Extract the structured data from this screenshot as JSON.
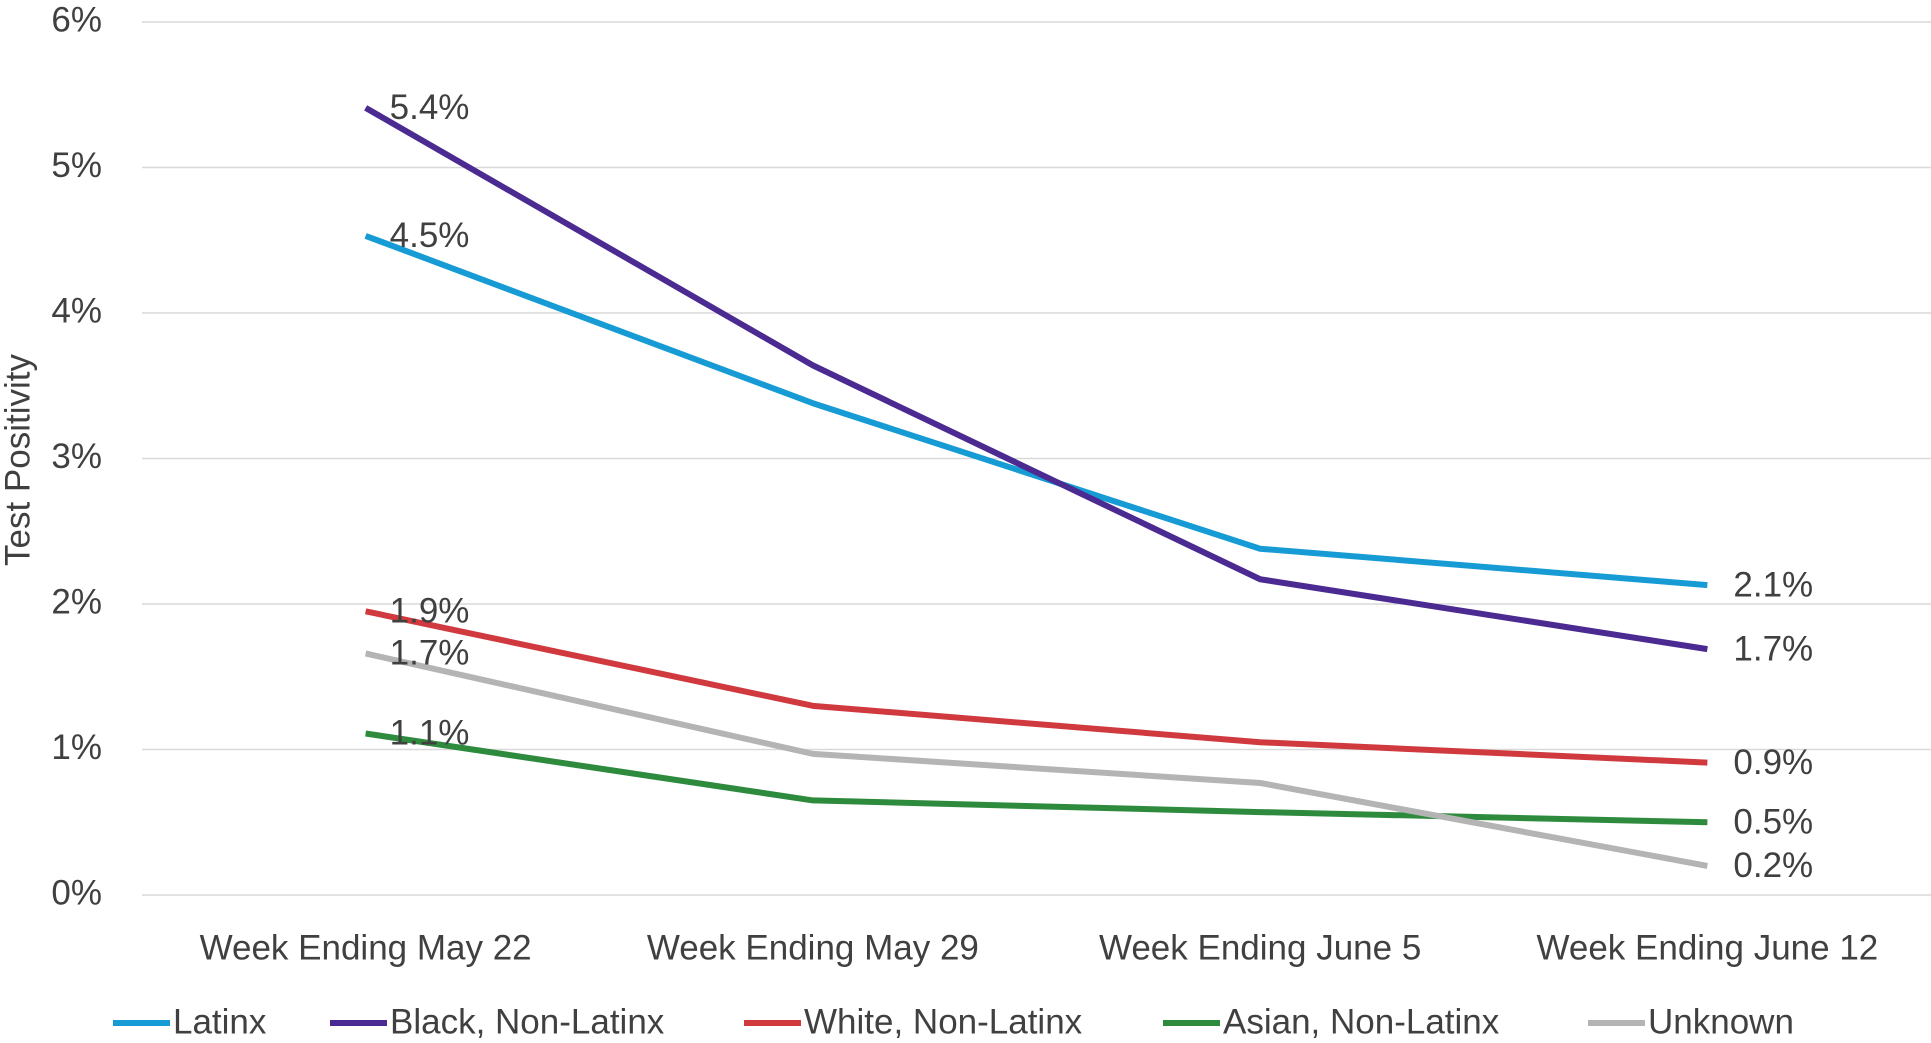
{
  "chart_data": {
    "type": "line",
    "y_axis_label": "Test Positivity",
    "categories": [
      "Week Ending May 22",
      "Week Ending May 29",
      "Week Ending June 5",
      "Week Ending June 12"
    ],
    "series": [
      {
        "name": "Latinx",
        "color": "#169bd5",
        "values": [
          4.53,
          3.38,
          2.38,
          2.13
        ],
        "value_labels": [
          "4.5%",
          null,
          null,
          "2.1%"
        ]
      },
      {
        "name": "Black, Non-Latinx",
        "color": "#4b2a91",
        "values": [
          5.41,
          3.64,
          2.17,
          1.69
        ],
        "value_labels": [
          "5.4%",
          null,
          null,
          "1.7%"
        ]
      },
      {
        "name": "White, Non-Latinx",
        "color": "#d03a3f",
        "values": [
          1.95,
          1.3,
          1.05,
          0.91
        ],
        "value_labels": [
          "1.9%",
          null,
          null,
          "0.9%"
        ]
      },
      {
        "name": "Asian, Non-Latinx",
        "color": "#2e8b3e",
        "values": [
          1.11,
          0.65,
          0.57,
          0.5
        ],
        "value_labels": [
          "1.1%",
          null,
          null,
          "0.5%"
        ]
      },
      {
        "name": "Unknown",
        "color": "#b4b4b4",
        "values": [
          1.66,
          0.97,
          0.77,
          0.2
        ],
        "value_labels": [
          "1.7%",
          null,
          null,
          "0.2%"
        ]
      }
    ],
    "ylim": [
      0,
      6
    ],
    "yticks": [
      {
        "value": 0,
        "label": "0%"
      },
      {
        "value": 1,
        "label": "1%"
      },
      {
        "value": 2,
        "label": "2%"
      },
      {
        "value": 3,
        "label": "3%"
      },
      {
        "value": 4,
        "label": "4%"
      },
      {
        "value": 5,
        "label": "5%"
      },
      {
        "value": 6,
        "label": "6%"
      }
    ],
    "grid": true,
    "legend": "bottom"
  }
}
